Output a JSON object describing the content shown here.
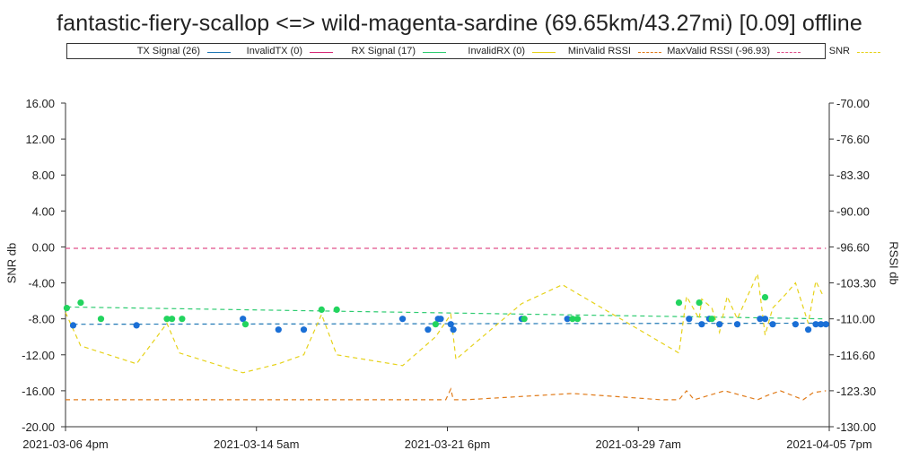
{
  "title": "fantastic-fiery-scallop <=> wild-magenta-sardine (69.65km/43.27mi) [0.09] offline",
  "legend": [
    {
      "label": "TX Signal (26)",
      "color": "#1f77b4",
      "style": "solid"
    },
    {
      "label": "InvalidTX (0)",
      "color": "#d62976",
      "style": "solid"
    },
    {
      "label": "RX Signal (17)",
      "color": "#2ecc71",
      "style": "solid"
    },
    {
      "label": "InvalidRX (0)",
      "color": "#e6d21a",
      "style": "solid"
    },
    {
      "label": "MinValid RSSI",
      "color": "#e07b1a",
      "style": "dashed"
    },
    {
      "label": "MaxValid RSSI (-96.93)",
      "color": "#e0508a",
      "style": "dashed"
    },
    {
      "label": "SNR",
      "color": "#e6d21a",
      "style": "dashed"
    }
  ],
  "chart_data": {
    "type": "scatter",
    "title": "fantastic-fiery-scallop <=> wild-magenta-sardine (69.65km/43.27mi) [0.09] offline",
    "xlabel": "",
    "ylabel_left": "SNR db",
    "ylabel_right": "RSSI db",
    "x_ticks": [
      "2021-03-06 4pm",
      "2021-03-14 5am",
      "2021-03-21 6pm",
      "2021-03-29 7am",
      "2021-04-05 7pm"
    ],
    "xlim_days": [
      0,
      30.13
    ],
    "y_left_ticks": [
      "16.00",
      "12.00",
      "8.00",
      "4.00",
      "0.00",
      "-4.00",
      "-8.00",
      "-12.00",
      "-16.00",
      "-20.00"
    ],
    "y_left_lim": [
      -20,
      16
    ],
    "y_right_ticks": [
      "-70.00",
      "-76.60",
      "-83.30",
      "-90.00",
      "-96.60",
      "-103.30",
      "-110.00",
      "-116.60",
      "-123.30",
      "-130.00"
    ],
    "y_right_lim": [
      -130,
      -70
    ],
    "series": [
      {
        "name": "TX Signal",
        "kind": "points",
        "axis": "right",
        "color": "#1f77b4",
        "x": [
          0.3,
          2.8,
          7.0,
          8.4,
          9.4,
          13.3,
          14.3,
          14.7,
          14.8,
          15.2,
          15.3,
          18.0,
          19.8,
          24.6,
          25.1,
          25.4,
          25.8,
          26.5,
          27.4,
          27.6,
          27.9,
          28.8,
          29.3,
          29.6,
          29.8,
          30.0
        ],
        "y": [
          -111.2,
          -111.2,
          -110.0,
          -112.0,
          -112.0,
          -110.0,
          -112.0,
          -110.0,
          -110.0,
          -111.0,
          -112.0,
          -110.0,
          -110.0,
          -110.0,
          -111.0,
          -110.0,
          -111.0,
          -111.0,
          -110.0,
          -110.0,
          -111.0,
          -111.0,
          -112.0,
          -111.0,
          -111.0,
          -111.0
        ]
      },
      {
        "name": "RX Signal",
        "kind": "points",
        "axis": "right",
        "color": "#2ecc71",
        "x": [
          0.05,
          0.6,
          1.4,
          4.0,
          4.2,
          4.6,
          7.1,
          10.1,
          10.7,
          14.6,
          18.1,
          20.0,
          20.2,
          24.2,
          25.0,
          25.5,
          27.6
        ],
        "y": [
          -108.0,
          -107.0,
          -110.0,
          -110.0,
          -110.0,
          -110.0,
          -111.0,
          -108.3,
          -108.3,
          -111.0,
          -110.0,
          -110.0,
          -110.0,
          -107.0,
          -107.0,
          -110.0,
          -106.0
        ]
      },
      {
        "name": "TX Signal trend",
        "kind": "line",
        "axis": "right",
        "color": "#1f77b4",
        "style": "dashed",
        "x": [
          0.3,
          30.0
        ],
        "y": [
          -111.0,
          -110.8
        ]
      },
      {
        "name": "RX Signal trend",
        "kind": "line",
        "axis": "right",
        "color": "#2ecc71",
        "style": "dashed",
        "x": [
          0.05,
          30.0
        ],
        "y": [
          -107.8,
          -110.0
        ]
      },
      {
        "name": "MaxValid RSSI",
        "kind": "line",
        "axis": "right",
        "color": "#e0508a",
        "style": "dashed",
        "x": [
          0.0,
          30.0
        ],
        "y": [
          -96.93,
          -96.93
        ]
      },
      {
        "name": "MinValid RSSI",
        "kind": "line",
        "axis": "left",
        "color": "#e07b1a",
        "style": "dashed",
        "x": [
          0.0,
          15.0,
          15.2,
          15.3,
          15.8,
          20.0,
          23.5,
          24.2,
          24.5,
          24.8,
          26.0,
          27.3,
          27.7,
          28.2,
          29.1,
          29.5,
          30.0
        ],
        "y": [
          -17.0,
          -17.0,
          -15.8,
          -17.0,
          -17.0,
          -16.3,
          -17.0,
          -17.0,
          -16.0,
          -17.0,
          -16.0,
          -17.0,
          -16.5,
          -16.0,
          -17.0,
          -16.2,
          -16.0
        ]
      },
      {
        "name": "SNR",
        "kind": "line",
        "axis": "left",
        "color": "#e6d21a",
        "style": "dashed",
        "x": [
          0.0,
          0.6,
          2.8,
          4.0,
          4.5,
          7.0,
          8.4,
          9.4,
          10.1,
          10.7,
          13.3,
          14.6,
          15.2,
          15.4,
          18.0,
          19.6,
          24.2,
          24.5,
          25.0,
          25.1,
          25.5,
          25.8,
          26.1,
          26.5,
          27.3,
          27.6,
          27.9,
          28.4,
          28.8,
          29.3,
          29.6,
          29.9
        ],
        "y": [
          -7.3,
          -11.0,
          -13.0,
          -8.5,
          -11.8,
          -14.0,
          -13.0,
          -12.0,
          -7.5,
          -12.0,
          -13.2,
          -10.0,
          -7.5,
          -12.5,
          -6.3,
          -4.2,
          -11.8,
          -5.5,
          -8.0,
          -5.8,
          -6.8,
          -9.5,
          -5.5,
          -8.0,
          -3.0,
          -9.8,
          -6.8,
          -5.3,
          -4.0,
          -8.5,
          -3.8,
          -5.5
        ]
      }
    ]
  }
}
